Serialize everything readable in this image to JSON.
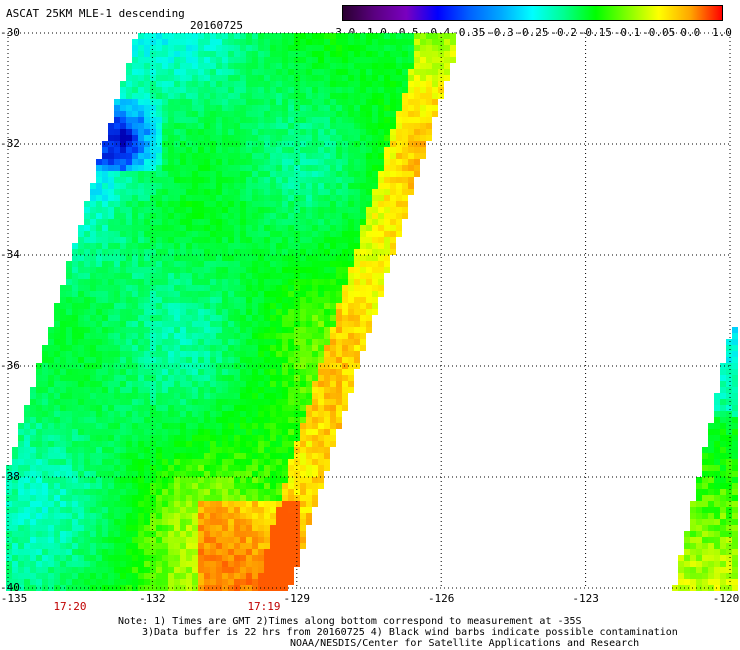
{
  "header": {
    "title": "ASCAT 25KM MLE-1 descending",
    "date": "20160725"
  },
  "colorbar": {
    "labels": [
      "-3.0",
      "-1.0",
      "-0.5",
      "-0.4",
      "-0.35",
      "-0.3",
      "-0.25",
      "-0.2",
      "-0.15",
      "-0.1",
      "-0.05",
      "0.0",
      "1.0"
    ],
    "colors": [
      "#2a0030",
      "#5a0080",
      "#7a00c0",
      "#0000ff",
      "#0060ff",
      "#00a8ff",
      "#00ffff",
      "#00ff90",
      "#00ff00",
      "#80ff00",
      "#ffff00",
      "#ffa500",
      "#ff0000"
    ]
  },
  "map": {
    "lat_labels": [
      "-30",
      "-32",
      "-34",
      "-36",
      "-38",
      "-40"
    ],
    "lon_labels": [
      "-135",
      "-132",
      "-129",
      "-126",
      "-123",
      "-120"
    ],
    "time_labels": [
      "17:20",
      "17:19"
    ],
    "lat_range": [
      -40,
      -30
    ],
    "lon_range": [
      -135,
      -120
    ]
  },
  "notes": {
    "line1": "Note: 1) Times are GMT 2)Times along bottom correspond to measurement at -35S",
    "line2": "3)Data buffer is 22 hrs from 20160725 4) Black wind barbs indicate possible contamination",
    "line3": "NOAA/NESDIS/Center for Satellite Applications and Research"
  }
}
